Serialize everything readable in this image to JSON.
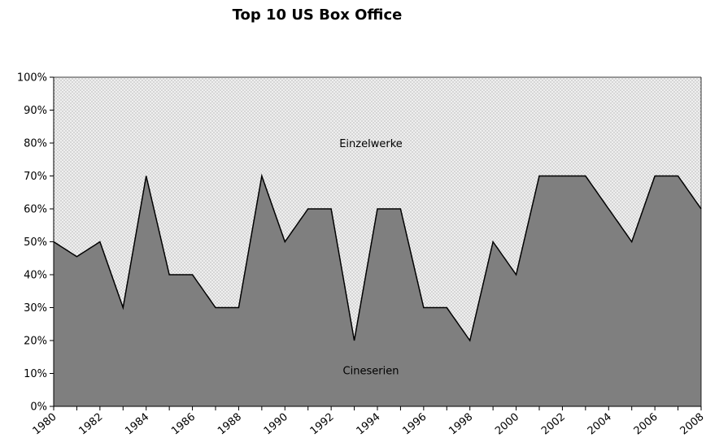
{
  "chart_data": {
    "type": "area",
    "title": "Top 10 US Box Office",
    "xlabel": "",
    "ylabel": "",
    "x": [
      1980,
      1981,
      1982,
      1983,
      1984,
      1985,
      1986,
      1987,
      1988,
      1989,
      1990,
      1991,
      1992,
      1993,
      1994,
      1995,
      1996,
      1997,
      1998,
      1999,
      2000,
      2001,
      2002,
      2003,
      2004,
      2005,
      2006,
      2007,
      2008
    ],
    "x_tick_labels": [
      "1980",
      "1982",
      "1984",
      "1986",
      "1988",
      "1990",
      "1992",
      "1994",
      "1996",
      "1998",
      "2000",
      "2002",
      "2004",
      "2006",
      "2008"
    ],
    "y_tick_labels": [
      "0%",
      "10%",
      "20%",
      "30%",
      "40%",
      "50%",
      "60%",
      "70%",
      "80%",
      "90%",
      "100%"
    ],
    "ylim": [
      0,
      100
    ],
    "stacked_percent": true,
    "series": [
      {
        "name": "Cineserien",
        "color": "#7f7f7f",
        "values": [
          50,
          45.5,
          50,
          30,
          70,
          40,
          40,
          30,
          30,
          70,
          50,
          60,
          60,
          20,
          60,
          60,
          30,
          30,
          20,
          50,
          40,
          70,
          70,
          70,
          60,
          50,
          70,
          70,
          60
        ]
      },
      {
        "name": "Einzelwerke",
        "color": "#e8e8e8",
        "pattern": "dotted",
        "values": [
          50,
          54.5,
          50,
          70,
          30,
          60,
          60,
          70,
          70,
          30,
          50,
          40,
          40,
          80,
          40,
          40,
          70,
          70,
          80,
          50,
          60,
          30,
          30,
          30,
          40,
          50,
          30,
          30,
          40
        ]
      }
    ],
    "grid": false,
    "legend": "inline labels"
  }
}
